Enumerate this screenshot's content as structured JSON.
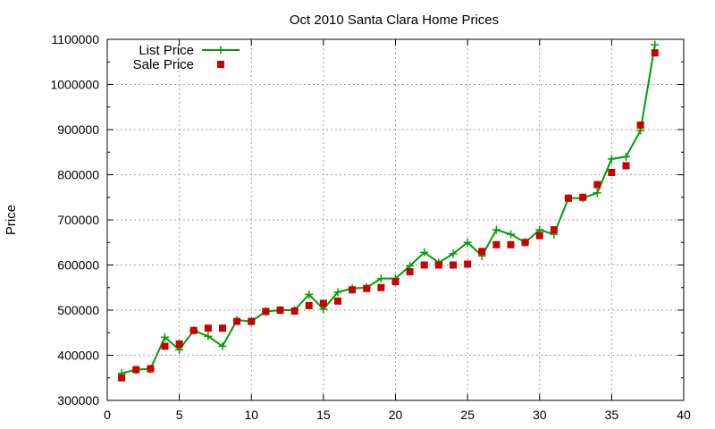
{
  "chart_data": {
    "type": "line",
    "title": "Oct 2010 Santa Clara Home Prices",
    "xlabel": "",
    "ylabel": "Price",
    "xlim": [
      0,
      40
    ],
    "ylim": [
      300000,
      1100000
    ],
    "xticks": [
      0,
      5,
      10,
      15,
      20,
      25,
      30,
      35,
      40
    ],
    "yticks": [
      300000,
      400000,
      500000,
      600000,
      700000,
      800000,
      900000,
      1000000,
      1100000
    ],
    "grid": true,
    "legend_position": "top-left",
    "series": [
      {
        "name": "List Price",
        "style": "line-plus",
        "color": "#00a000",
        "x": [
          1,
          2,
          3,
          4,
          5,
          6,
          7,
          8,
          9,
          10,
          11,
          12,
          13,
          14,
          15,
          16,
          17,
          18,
          19,
          20,
          21,
          22,
          23,
          24,
          25,
          26,
          27,
          28,
          29,
          30,
          31,
          32,
          33,
          34,
          35,
          36,
          37,
          38
        ],
        "y": [
          360000,
          368000,
          370000,
          440000,
          412000,
          455000,
          442000,
          420000,
          478000,
          475000,
          497000,
          500000,
          500000,
          535000,
          502000,
          540000,
          548000,
          550000,
          570000,
          570000,
          598000,
          628000,
          605000,
          625000,
          650000,
          620000,
          678000,
          668000,
          650000,
          678000,
          668000,
          748000,
          748000,
          760000,
          835000,
          840000,
          898000,
          1088000
        ]
      },
      {
        "name": "Sale Price",
        "style": "square-points",
        "color": "#cc0000",
        "x": [
          1,
          2,
          3,
          4,
          5,
          6,
          7,
          8,
          9,
          10,
          11,
          12,
          13,
          14,
          15,
          16,
          17,
          18,
          19,
          20,
          21,
          22,
          23,
          24,
          25,
          26,
          27,
          28,
          29,
          30,
          31,
          32,
          33,
          34,
          35,
          36,
          37,
          38
        ],
        "y": [
          350000,
          368000,
          370000,
          420000,
          425000,
          455000,
          460000,
          460000,
          475000,
          475000,
          497000,
          500000,
          498000,
          510000,
          515000,
          520000,
          545000,
          548000,
          550000,
          563000,
          585000,
          600000,
          600000,
          600000,
          602000,
          630000,
          645000,
          645000,
          650000,
          665000,
          678000,
          748000,
          750000,
          778000,
          805000,
          820000,
          910000,
          1070000
        ]
      }
    ]
  }
}
